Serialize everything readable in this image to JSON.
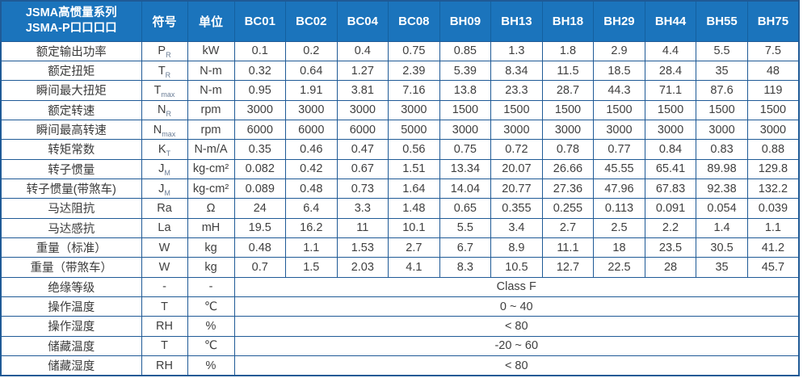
{
  "table": {
    "title_line1": "JSMA高惯量系列",
    "title_line2": "JSMA-P口口口口",
    "col_symbol": "符号",
    "col_unit": "单位",
    "models": [
      "BC01",
      "BC02",
      "BC04",
      "BC08",
      "BH09",
      "BH13",
      "BH18",
      "BH29",
      "BH44",
      "BH55",
      "BH75"
    ],
    "rows": [
      {
        "label": "额定输出功率",
        "symbol": "P",
        "sub": "R",
        "unit": "kW",
        "values": [
          "0.1",
          "0.2",
          "0.4",
          "0.75",
          "0.85",
          "1.3",
          "1.8",
          "2.9",
          "4.4",
          "5.5",
          "7.5"
        ]
      },
      {
        "label": "额定扭矩",
        "symbol": "T",
        "sub": "R",
        "unit": "N-m",
        "values": [
          "0.32",
          "0.64",
          "1.27",
          "2.39",
          "5.39",
          "8.34",
          "11.5",
          "18.5",
          "28.4",
          "35",
          "48"
        ]
      },
      {
        "label": "瞬间最大扭矩",
        "symbol": "T",
        "sub": "max",
        "unit": "N-m",
        "values": [
          "0.95",
          "1.91",
          "3.81",
          "7.16",
          "13.8",
          "23.3",
          "28.7",
          "44.3",
          "71.1",
          "87.6",
          "119"
        ]
      },
      {
        "label": "额定转速",
        "symbol": "N",
        "sub": "R",
        "unit": "rpm",
        "values": [
          "3000",
          "3000",
          "3000",
          "3000",
          "1500",
          "1500",
          "1500",
          "1500",
          "1500",
          "1500",
          "1500"
        ]
      },
      {
        "label": "瞬间最高转速",
        "symbol": "N",
        "sub": "max",
        "unit": "rpm",
        "values": [
          "6000",
          "6000",
          "6000",
          "5000",
          "3000",
          "3000",
          "3000",
          "3000",
          "3000",
          "3000",
          "3000"
        ]
      },
      {
        "label": "转矩常数",
        "symbol": "K",
        "sub": "T",
        "unit": "N-m/A",
        "values": [
          "0.35",
          "0.46",
          "0.47",
          "0.56",
          "0.75",
          "0.72",
          "0.78",
          "0.77",
          "0.84",
          "0.83",
          "0.88"
        ]
      },
      {
        "label": "转子惯量",
        "symbol": "J",
        "sub": "M",
        "unit": "kg-cm²",
        "values": [
          "0.082",
          "0.42",
          "0.67",
          "1.51",
          "13.34",
          "20.07",
          "26.66",
          "45.55",
          "65.41",
          "89.98",
          "129.8"
        ]
      },
      {
        "label": "转子惯量(带煞车)",
        "symbol": "J",
        "sub": "M",
        "unit": "kg-cm²",
        "values": [
          "0.089",
          "0.48",
          "0.73",
          "1.64",
          "14.04",
          "20.77",
          "27.36",
          "47.96",
          "67.83",
          "92.38",
          "132.2"
        ]
      },
      {
        "label": "马达阻抗",
        "symbol": "Ra",
        "sub": "",
        "unit": "Ω",
        "values": [
          "24",
          "6.4",
          "3.3",
          "1.48",
          "0.65",
          "0.355",
          "0.255",
          "0.113",
          "0.091",
          "0.054",
          "0.039"
        ]
      },
      {
        "label": "马达感抗",
        "symbol": "La",
        "sub": "",
        "unit": "mH",
        "values": [
          "19.5",
          "16.2",
          "11",
          "10.1",
          "5.5",
          "3.4",
          "2.7",
          "2.5",
          "2.2",
          "1.4",
          "1.1"
        ]
      },
      {
        "label": "重量（标准）",
        "symbol": "W",
        "sub": "",
        "unit": "kg",
        "values": [
          "0.48",
          "1.1",
          "1.53",
          "2.7",
          "6.7",
          "8.9",
          "11.1",
          "18",
          "23.5",
          "30.5",
          "41.2"
        ]
      },
      {
        "label": "重量（带煞车）",
        "symbol": "W",
        "sub": "",
        "unit": "kg",
        "values": [
          "0.7",
          "1.5",
          "2.03",
          "4.1",
          "8.3",
          "10.5",
          "12.7",
          "22.5",
          "28",
          "35",
          "45.7"
        ]
      }
    ],
    "span_rows": [
      {
        "label": "绝缘等级",
        "symbol": "-",
        "sub": "",
        "unit": "-",
        "value": "Class F"
      },
      {
        "label": "操作温度",
        "symbol": "T",
        "sub": "",
        "unit": "℃",
        "value": "0 ~ 40"
      },
      {
        "label": "操作湿度",
        "symbol": "RH",
        "sub": "",
        "unit": "%",
        "value": "< 80"
      },
      {
        "label": "储藏温度",
        "symbol": "T",
        "sub": "",
        "unit": "℃",
        "value": "-20 ~ 60"
      },
      {
        "label": "储藏湿度",
        "symbol": "RH",
        "sub": "",
        "unit": "%",
        "value": "< 80"
      }
    ],
    "colors": {
      "header_bg": "#1b74bc",
      "grid_border": "#1f5a96",
      "body_text": "#3f3f3f",
      "header_text": "#ffffff"
    }
  }
}
